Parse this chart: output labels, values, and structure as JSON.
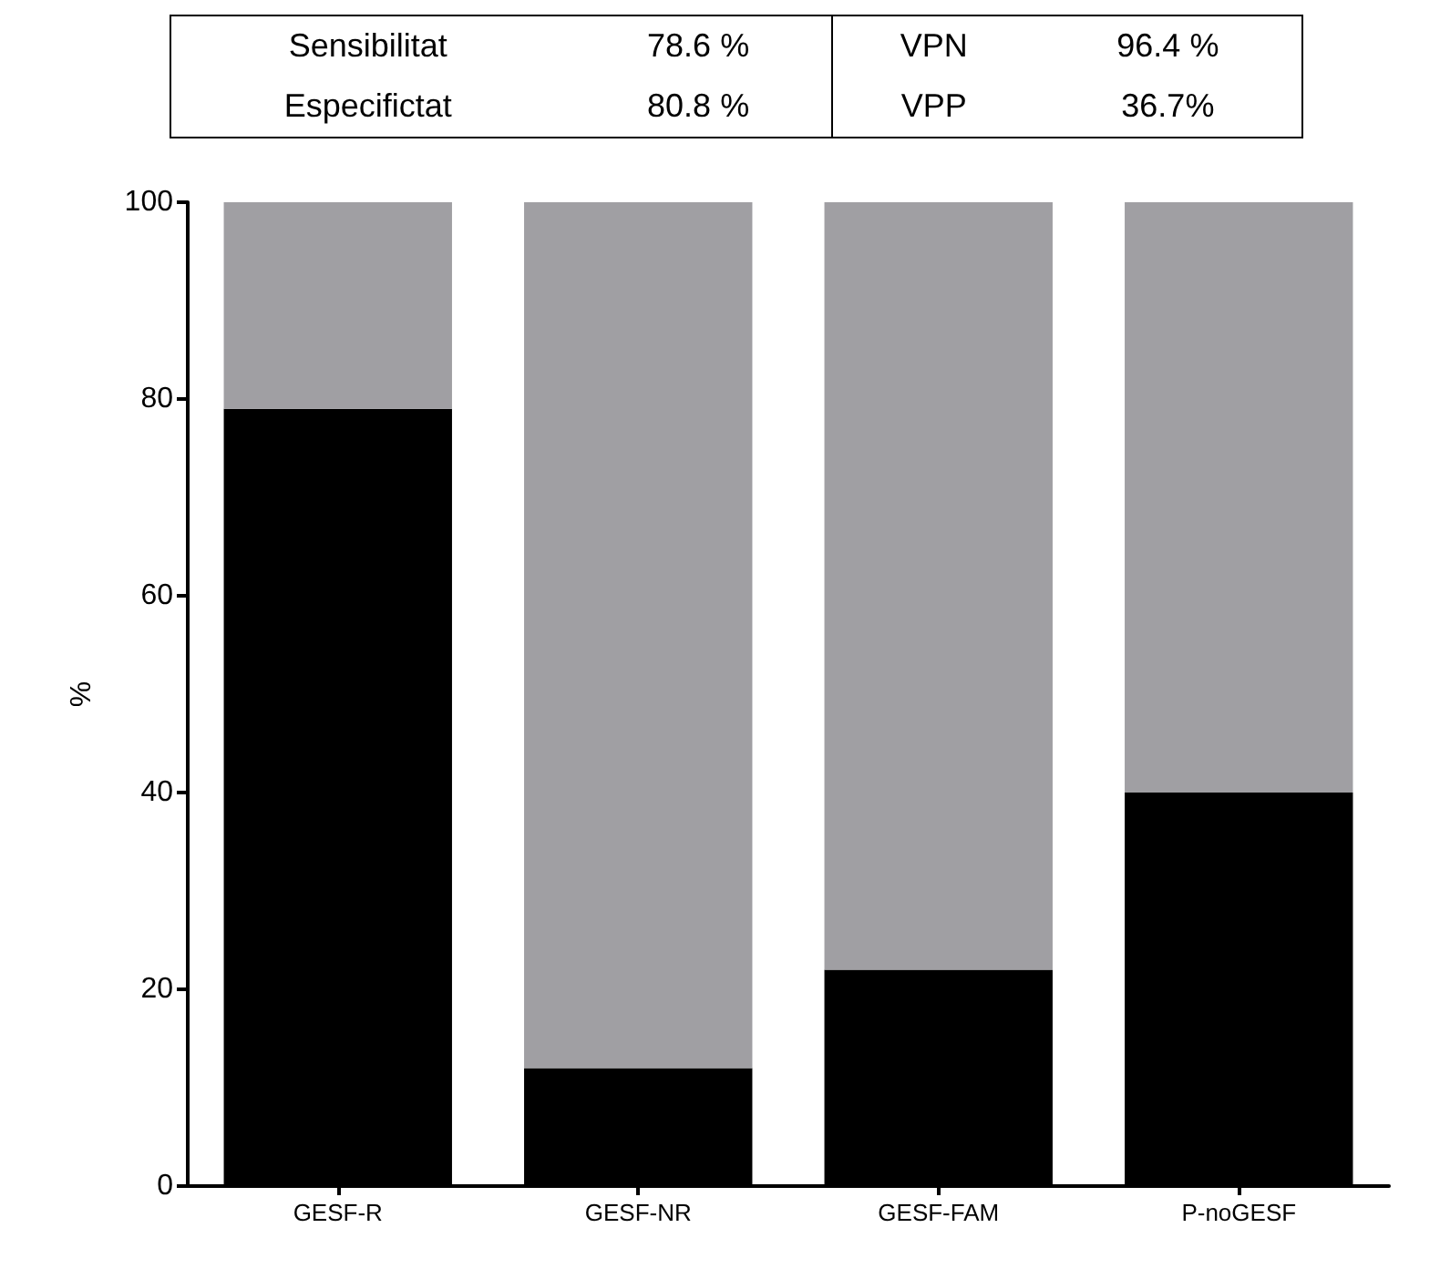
{
  "chart_data": {
    "type": "bar",
    "stacked": true,
    "ylabel": "%",
    "categories": [
      "GESF-R",
      "GESF-NR",
      "GESF-FAM",
      "P-noGESF"
    ],
    "series": [
      {
        "color": "#000000",
        "values": [
          79,
          12,
          22,
          40
        ]
      },
      {
        "color": "#a09fa3",
        "values": [
          21,
          88,
          78,
          60
        ]
      }
    ],
    "ylim": [
      0,
      100
    ],
    "yticks": [
      0,
      20,
      40,
      60,
      80,
      100
    ],
    "annotations": [
      "Sensibilitat",
      "78.6 %",
      "VPN",
      "96.4 %",
      "Especifictat",
      "80.8 %",
      "VPP",
      "36.7%"
    ]
  }
}
